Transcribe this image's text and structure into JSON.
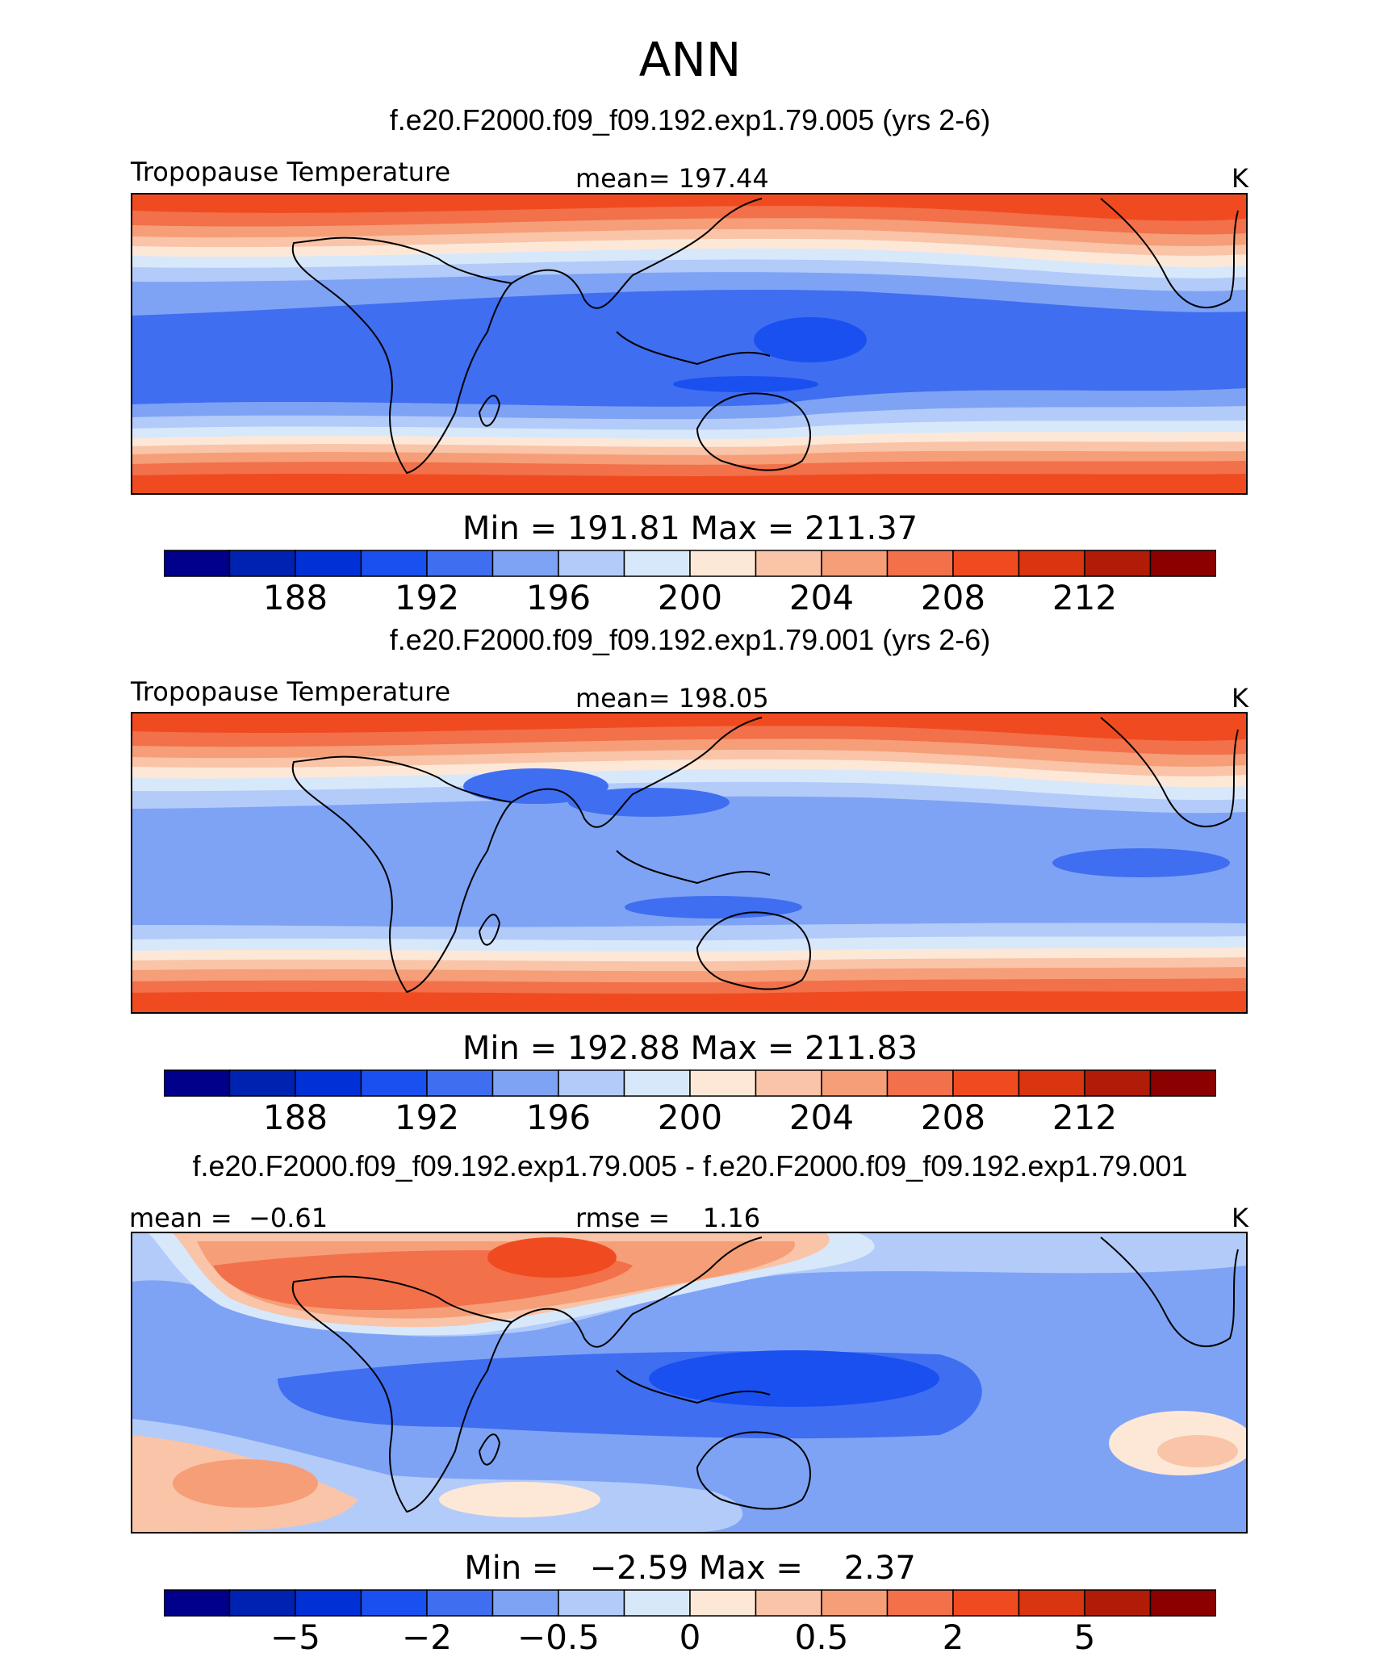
{
  "title": "ANN",
  "palette": [
    "#00008b",
    "#0022b0",
    "#0030d6",
    "#1a50f0",
    "#3f6ef0",
    "#7ea3f5",
    "#b3cbf9",
    "#d8e8fb",
    "#fde8d8",
    "#f9c4a8",
    "#f59e78",
    "#f2704a",
    "#f04b20",
    "#d93510",
    "#b01c08",
    "#8b0000"
  ],
  "chart_data": [
    {
      "type": "heatmap",
      "run": "f.e20.F2000.f09_f09.192.exp1.79.005 (yrs 2-6)",
      "variable": "Tropopause Temperature",
      "mean_label": "mean=",
      "mean_value": "197.44",
      "units": "K",
      "min_label": "Min =",
      "min_value": "191.81",
      "max_label": "Max =",
      "max_value": "211.37",
      "colorbar_ticks": [
        "188",
        "192",
        "196",
        "200",
        "204",
        "208",
        "212"
      ],
      "colorbar_levels": 16,
      "lat_range": [
        -60,
        60
      ],
      "lon_range": [
        -30,
        330
      ]
    },
    {
      "type": "heatmap",
      "run": "f.e20.F2000.f09_f09.192.exp1.79.001 (yrs 2-6)",
      "variable": "Tropopause Temperature",
      "mean_label": "mean=",
      "mean_value": "198.05",
      "units": "K",
      "min_label": "Min =",
      "min_value": "192.88",
      "max_label": "Max =",
      "max_value": "211.83",
      "colorbar_ticks": [
        "188",
        "192",
        "196",
        "200",
        "204",
        "208",
        "212"
      ],
      "colorbar_levels": 16,
      "lat_range": [
        -60,
        60
      ],
      "lon_range": [
        -30,
        330
      ]
    },
    {
      "type": "heatmap",
      "run": "f.e20.F2000.f09_f09.192.exp1.79.005 - f.e20.F2000.f09_f09.192.exp1.79.001",
      "mean_label": "mean =",
      "mean_value": "−0.61",
      "rmse_label": "rmse =",
      "rmse_value": "1.16",
      "units": "K",
      "min_label": "Min =",
      "min_value": "−2.59",
      "max_label": "Max =",
      "max_value": "2.37",
      "colorbar_ticks": [
        "−5",
        "−2",
        "−0.5",
        "0",
        "0.5",
        "2",
        "5"
      ],
      "colorbar_levels": 16,
      "lat_range": [
        -60,
        60
      ],
      "lon_range": [
        -30,
        330
      ]
    }
  ]
}
